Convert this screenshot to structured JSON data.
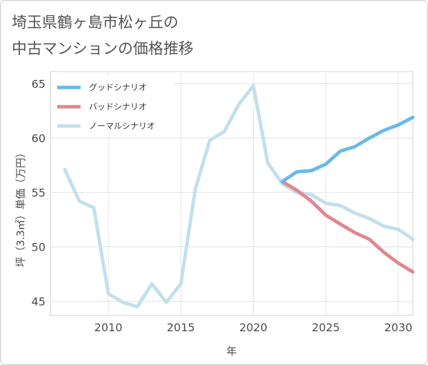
{
  "title": {
    "line1": "埼玉県鶴ヶ島市松ヶ丘の",
    "line2": "中古マンションの価格推移"
  },
  "chart_data": {
    "type": "line",
    "title": "埼玉県鶴ヶ島市松ヶ丘の中古マンションの価格推移",
    "xlabel": "年",
    "ylabel": "坪（3.3㎡）単価（万円）",
    "xlim": [
      2006,
      2031
    ],
    "ylim": [
      43.7,
      66.1
    ],
    "xticks": [
      2010,
      2015,
      2020,
      2025,
      2030
    ],
    "yticks": [
      45,
      50,
      55,
      60,
      65
    ],
    "legend_position": "top-left",
    "series": [
      {
        "name": "グッドシナリオ",
        "color": "#6bb8ea",
        "x": [
          2022,
          2023,
          2024,
          2025,
          2026,
          2027,
          2028,
          2029,
          2030,
          2031
        ],
        "values": [
          56.0,
          56.9,
          57.0,
          57.6,
          58.8,
          59.2,
          60.0,
          60.7,
          61.2,
          61.9
        ]
      },
      {
        "name": "バッドシナリオ",
        "color": "#e0878f",
        "x": [
          2022,
          2023,
          2024,
          2025,
          2026,
          2027,
          2028,
          2029,
          2030,
          2031
        ],
        "values": [
          56.0,
          55.2,
          54.2,
          52.9,
          52.1,
          51.3,
          50.7,
          49.5,
          48.5,
          47.7
        ]
      },
      {
        "name": "ノーマルシナリオ",
        "color": "#c2dfec",
        "x": [
          2007,
          2008,
          2009,
          2010,
          2011,
          2012,
          2013,
          2014,
          2015,
          2016,
          2017,
          2018,
          2019,
          2020,
          2021,
          2022,
          2023,
          2024,
          2025,
          2026,
          2027,
          2028,
          2029,
          2030,
          2031
        ],
        "values": [
          57.1,
          54.2,
          53.6,
          45.7,
          44.9,
          44.5,
          46.6,
          44.9,
          46.6,
          55.3,
          59.8,
          60.6,
          63.1,
          64.8,
          57.7,
          55.8,
          55.0,
          54.8,
          54.0,
          53.8,
          53.1,
          52.6,
          51.9,
          51.6,
          50.7
        ]
      }
    ]
  }
}
